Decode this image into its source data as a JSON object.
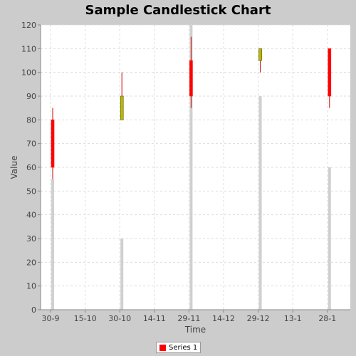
{
  "chart_data": {
    "type": "candlestick",
    "title": "Sample Candlestick Chart",
    "xlabel": "Time",
    "ylabel": "Value",
    "ylim": [
      0,
      120
    ],
    "yticks": [
      0,
      10,
      20,
      30,
      40,
      50,
      60,
      70,
      80,
      90,
      100,
      110,
      120
    ],
    "xticks": [
      "30-9",
      "15-10",
      "30-10",
      "14-11",
      "29-11",
      "14-12",
      "29-12",
      "13-1",
      "28-1"
    ],
    "grid": true,
    "legend_position": "bottom-center",
    "series": [
      {
        "name": "Series 1",
        "color": "#ff0000",
        "points": [
          {
            "date": "30-9",
            "open": 80,
            "high": 85,
            "low": 55,
            "close": 60,
            "volume": 55
          },
          {
            "date": "30-10",
            "open": 80,
            "high": 100,
            "low": 80,
            "close": 90,
            "volume": 30
          },
          {
            "date": "29-11",
            "open": 105,
            "high": 115,
            "low": 85,
            "close": 90,
            "volume": 120
          },
          {
            "date": "29-12",
            "open": 105,
            "high": 110,
            "low": 100,
            "close": 110,
            "volume": 90
          },
          {
            "date": "28-1",
            "open": 110,
            "high": 110,
            "low": 85,
            "close": 90,
            "volume": 60
          }
        ]
      }
    ],
    "colors": {
      "up_body": "#b8b800",
      "down_body": "#ff0000",
      "wick": "#cc0000",
      "volume": "#d0d0d0",
      "plot_background": "#ffffff",
      "grid": "#dddddd"
    }
  }
}
